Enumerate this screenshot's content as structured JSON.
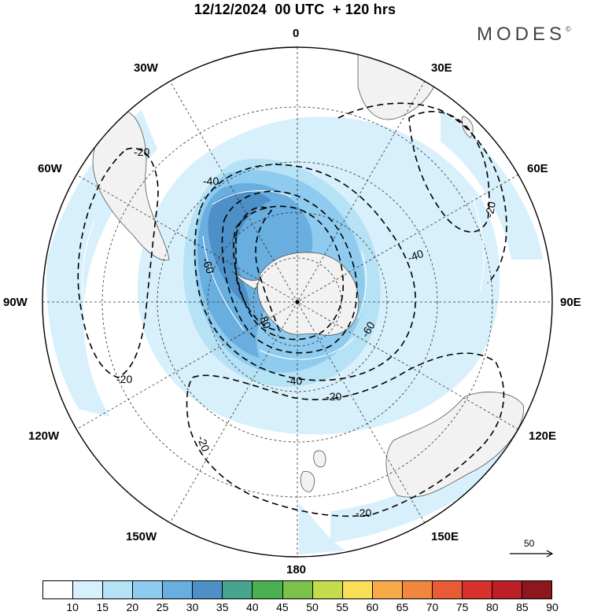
{
  "title": "12/12/2024  00 UTC  + 120 hrs",
  "brand": "MODES",
  "brand_mark": "©",
  "longitude_labels": {
    "lon_0": "0",
    "lon_30e": "30E",
    "lon_60e": "60E",
    "lon_90e": "90E",
    "lon_120e": "120E",
    "lon_150e": "150E",
    "lon_180": "180",
    "lon_150w": "150W",
    "lon_120w": "120W",
    "lon_90w": "90W",
    "lon_60w": "60W",
    "lon_30w": "30W"
  },
  "contour_labels": {
    "c_m20_a": "-20",
    "c_m20_b": "-20",
    "c_m20_c": "-20",
    "c_m20_d": "-20",
    "c_m20_e": "-20",
    "c_m20_f": "-20",
    "c_m40_a": "-40",
    "c_m40_b": "-40",
    "c_m40_c": "-40",
    "c_m60_a": "-60",
    "c_m60_b": "-60",
    "c_m80": "-80"
  },
  "reference_vector": "50",
  "colorbar": {
    "ticks": [
      "10",
      "15",
      "20",
      "25",
      "30",
      "35",
      "40",
      "45",
      "50",
      "55",
      "60",
      "65",
      "70",
      "75",
      "80",
      "85",
      "90"
    ],
    "colors": [
      "#ffffff",
      "#d7f0fb",
      "#b6e2f6",
      "#8ecbee",
      "#68aede",
      "#4d8fc7",
      "#47a58f",
      "#4bb052",
      "#7cc24a",
      "#c6dc4d",
      "#f9de58",
      "#f7aa48",
      "#f1863f",
      "#e85b35",
      "#d9322d",
      "#bb2026",
      "#8d171c"
    ]
  },
  "map": {
    "projection": "south-polar-stereographic",
    "center_longitude": "0 at top",
    "land_color": "#f2f2f2",
    "coast_color": "#555555",
    "contour_style": "black dashed",
    "contour_values": [
      -20,
      -40,
      -60,
      -80
    ],
    "shading_variable_range": [
      10,
      90
    ]
  }
}
